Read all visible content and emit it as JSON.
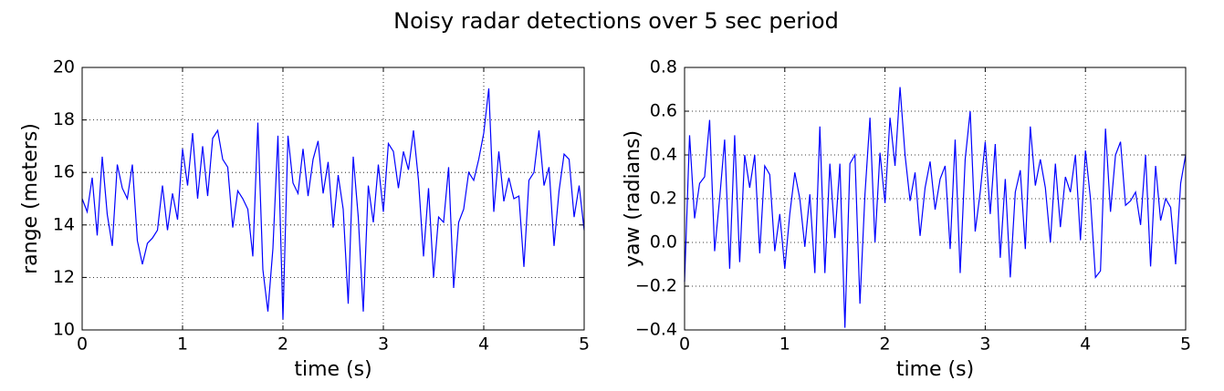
{
  "title": "Noisy radar detections over 5 sec period",
  "chart_data": [
    {
      "type": "line",
      "xlabel": "time (s)",
      "ylabel": "range (meters)",
      "xlim": [
        0,
        5
      ],
      "xticks": [
        0,
        1,
        2,
        3,
        4,
        5
      ],
      "ylim": [
        10,
        20
      ],
      "yticks": [
        10,
        12,
        14,
        16,
        18,
        20
      ],
      "grid": true,
      "x": [
        0,
        0.05,
        0.1,
        0.15,
        0.2,
        0.25,
        0.3,
        0.35,
        0.4,
        0.45,
        0.5,
        0.55,
        0.6,
        0.65,
        0.7,
        0.75,
        0.8,
        0.85,
        0.9,
        0.95,
        1,
        1.05,
        1.1,
        1.15,
        1.2,
        1.25,
        1.3,
        1.35,
        1.4,
        1.45,
        1.5,
        1.55,
        1.6,
        1.65,
        1.7,
        1.75,
        1.8,
        1.85,
        1.9,
        1.95,
        2,
        2.05,
        2.1,
        2.15,
        2.2,
        2.25,
        2.3,
        2.35,
        2.4,
        2.45,
        2.5,
        2.55,
        2.6,
        2.65,
        2.7,
        2.75,
        2.8,
        2.85,
        2.9,
        2.95,
        3,
        3.05,
        3.1,
        3.15,
        3.2,
        3.25,
        3.3,
        3.35,
        3.4,
        3.45,
        3.5,
        3.55,
        3.6,
        3.65,
        3.7,
        3.75,
        3.8,
        3.85,
        3.9,
        3.95,
        4,
        4.05,
        4.1,
        4.15,
        4.2,
        4.25,
        4.3,
        4.35,
        4.4,
        4.45,
        4.5,
        4.55,
        4.6,
        4.65,
        4.7,
        4.75,
        4.8,
        4.85,
        4.9,
        4.95,
        5
      ],
      "series": [
        {
          "color": "#0000ff",
          "values": [
            15.0,
            14.5,
            15.8,
            13.6,
            16.6,
            14.4,
            13.2,
            16.3,
            15.4,
            15.0,
            16.3,
            13.4,
            12.5,
            13.3,
            13.5,
            13.8,
            15.5,
            13.8,
            15.2,
            14.2,
            16.9,
            15.5,
            17.5,
            15.0,
            17.0,
            15.1,
            17.3,
            17.6,
            16.5,
            16.2,
            13.9,
            15.3,
            15.0,
            14.6,
            12.8,
            17.9,
            12.3,
            10.7,
            13.1,
            17.4,
            10.4,
            17.4,
            15.6,
            15.2,
            16.9,
            15.1,
            16.5,
            17.2,
            15.2,
            16.4,
            13.9,
            15.9,
            14.6,
            11.0,
            16.6,
            14.3,
            10.7,
            15.5,
            14.1,
            16.3,
            14.5,
            17.1,
            16.8,
            15.4,
            16.8,
            16.1,
            17.6,
            15.7,
            12.8,
            15.4,
            12.0,
            14.3,
            14.1,
            16.2,
            11.6,
            14.1,
            14.6,
            16.0,
            15.7,
            16.5,
            17.5,
            19.2,
            14.5,
            16.8,
            14.9,
            15.8,
            15.0,
            15.1,
            12.4,
            15.7,
            16.0,
            17.6,
            15.5,
            16.2,
            13.2,
            15.3,
            16.7,
            16.5,
            14.3,
            15.5,
            13.8
          ]
        }
      ]
    },
    {
      "type": "line",
      "xlabel": "time (s)",
      "ylabel": "yaw (radians)",
      "xlim": [
        0,
        5
      ],
      "xticks": [
        0,
        1,
        2,
        3,
        4,
        5
      ],
      "ylim": [
        -0.4,
        0.8
      ],
      "yticks": [
        {
          "value": -0.4,
          "label": "−0.4"
        },
        {
          "value": -0.2,
          "label": "−0.2"
        },
        {
          "value": 0,
          "label": "0.0"
        },
        0.2,
        0.4,
        0.6,
        0.8
      ],
      "grid": true,
      "x": [
        0,
        0.05,
        0.1,
        0.15,
        0.2,
        0.25,
        0.3,
        0.35,
        0.4,
        0.45,
        0.5,
        0.55,
        0.6,
        0.65,
        0.7,
        0.75,
        0.8,
        0.85,
        0.9,
        0.95,
        1,
        1.05,
        1.1,
        1.15,
        1.2,
        1.25,
        1.3,
        1.35,
        1.4,
        1.45,
        1.5,
        1.55,
        1.6,
        1.65,
        1.7,
        1.75,
        1.8,
        1.85,
        1.9,
        1.95,
        2,
        2.05,
        2.1,
        2.15,
        2.2,
        2.25,
        2.3,
        2.35,
        2.4,
        2.45,
        2.5,
        2.55,
        2.6,
        2.65,
        2.7,
        2.75,
        2.8,
        2.85,
        2.9,
        2.95,
        3,
        3.05,
        3.1,
        3.15,
        3.2,
        3.25,
        3.3,
        3.35,
        3.4,
        3.45,
        3.5,
        3.55,
        3.6,
        3.65,
        3.7,
        3.75,
        3.8,
        3.85,
        3.9,
        3.95,
        4,
        4.05,
        4.1,
        4.15,
        4.2,
        4.25,
        4.3,
        4.35,
        4.4,
        4.45,
        4.5,
        4.55,
        4.6,
        4.65,
        4.7,
        4.75,
        4.8,
        4.85,
        4.9,
        4.95,
        5
      ],
      "series": [
        {
          "color": "#0000ff",
          "values": [
            -0.18,
            0.49,
            0.11,
            0.27,
            0.3,
            0.56,
            -0.04,
            0.2,
            0.47,
            -0.12,
            0.49,
            -0.09,
            0.4,
            0.25,
            0.4,
            -0.05,
            0.35,
            0.31,
            -0.04,
            0.13,
            -0.12,
            0.13,
            0.32,
            0.2,
            -0.02,
            0.22,
            -0.14,
            0.53,
            -0.14,
            0.36,
            0.02,
            0.36,
            -0.39,
            0.36,
            0.4,
            -0.28,
            0.22,
            0.57,
            0.0,
            0.41,
            0.18,
            0.57,
            0.35,
            0.71,
            0.4,
            0.19,
            0.32,
            0.03,
            0.25,
            0.37,
            0.15,
            0.29,
            0.35,
            -0.03,
            0.47,
            -0.14,
            0.38,
            0.6,
            0.05,
            0.23,
            0.46,
            0.13,
            0.45,
            -0.07,
            0.29,
            -0.16,
            0.23,
            0.33,
            -0.03,
            0.53,
            0.26,
            0.38,
            0.25,
            0.0,
            0.36,
            0.07,
            0.3,
            0.23,
            0.4,
            0.01,
            0.42,
            0.2,
            -0.16,
            -0.13,
            0.52,
            0.14,
            0.4,
            0.46,
            0.17,
            0.19,
            0.23,
            0.08,
            0.4,
            -0.11,
            0.35,
            0.1,
            0.2,
            0.16,
            -0.1,
            0.27,
            0.4
          ]
        }
      ]
    }
  ]
}
